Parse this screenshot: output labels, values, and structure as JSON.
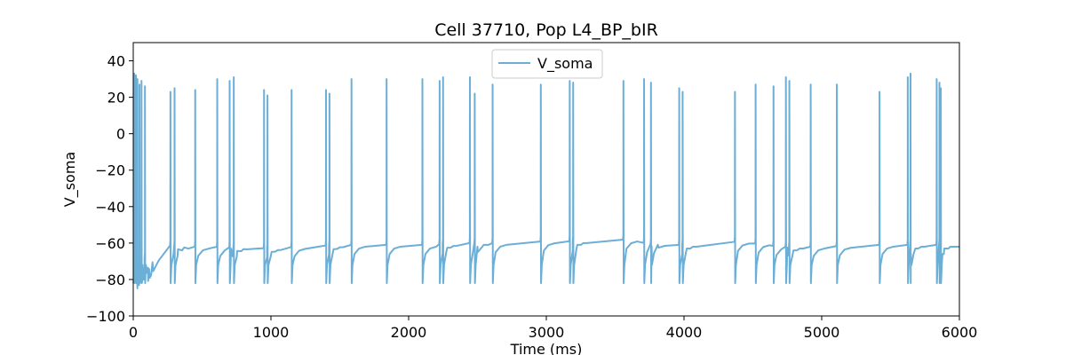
{
  "chart_data": {
    "type": "line",
    "title": "Cell 37710, Pop L4_BP_bIR",
    "xlabel": "Time (ms)",
    "ylabel": "V_soma",
    "xlim": [
      0,
      6000
    ],
    "ylim": [
      -100,
      50
    ],
    "xticks": [
      0,
      1000,
      2000,
      3000,
      4000,
      5000,
      6000
    ],
    "yticks": [
      -100,
      -80,
      -60,
      -40,
      -20,
      0,
      20,
      40
    ],
    "grid": false,
    "legend": "upper center",
    "series": [
      {
        "name": "V_soma",
        "color": "#6baed6",
        "baseline": [
          [
            0,
            -82
          ],
          [
            150,
            -60
          ],
          [
            300,
            -63
          ],
          [
            600,
            -63
          ],
          [
            900,
            -64
          ],
          [
            1200,
            -63
          ],
          [
            1500,
            -62
          ],
          [
            1800,
            -62
          ],
          [
            2100,
            -62
          ],
          [
            2400,
            -61
          ],
          [
            2700,
            -61
          ],
          [
            3000,
            -60
          ],
          [
            3300,
            -60
          ],
          [
            3550,
            -59
          ],
          [
            3800,
            -62
          ],
          [
            4200,
            -62
          ],
          [
            4400,
            -60
          ],
          [
            4700,
            -63
          ],
          [
            5000,
            -63
          ],
          [
            5300,
            -62
          ],
          [
            5600,
            -62
          ],
          [
            5900,
            -62
          ],
          [
            6000,
            -62
          ]
        ],
        "spikes": [
          [
            8,
            33
          ],
          [
            20,
            32
          ],
          [
            30,
            30
          ],
          [
            45,
            27
          ],
          [
            60,
            29
          ],
          [
            85,
            26
          ],
          [
            270,
            23
          ],
          [
            300,
            25
          ],
          [
            450,
            24
          ],
          [
            610,
            30
          ],
          [
            700,
            29
          ],
          [
            730,
            31
          ],
          [
            950,
            24
          ],
          [
            975,
            21
          ],
          [
            1150,
            24
          ],
          [
            1400,
            24
          ],
          [
            1425,
            22
          ],
          [
            1585,
            30
          ],
          [
            1840,
            30
          ],
          [
            2100,
            30
          ],
          [
            2225,
            29
          ],
          [
            2250,
            31
          ],
          [
            2445,
            31
          ],
          [
            2480,
            22
          ],
          [
            2610,
            27
          ],
          [
            2960,
            27
          ],
          [
            3170,
            29
          ],
          [
            3195,
            28
          ],
          [
            3560,
            29
          ],
          [
            3710,
            30
          ],
          [
            3760,
            28
          ],
          [
            3965,
            25
          ],
          [
            3990,
            23
          ],
          [
            4370,
            23
          ],
          [
            4520,
            27
          ],
          [
            4650,
            26
          ],
          [
            4740,
            31
          ],
          [
            4765,
            29
          ],
          [
            4920,
            27
          ],
          [
            5110,
            27
          ],
          [
            5420,
            23
          ],
          [
            5625,
            31
          ],
          [
            5645,
            33
          ],
          [
            5835,
            30
          ],
          [
            5855,
            28
          ],
          [
            5865,
            25
          ]
        ],
        "trough": -82,
        "final_value": -62
      }
    ]
  }
}
